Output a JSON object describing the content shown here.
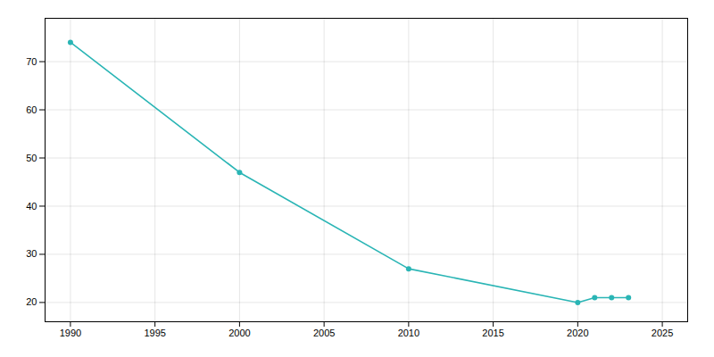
{
  "chart_data": {
    "type": "line",
    "x": [
      1990,
      2000,
      2010,
      2020,
      2021,
      2022,
      2023
    ],
    "values": [
      74,
      47,
      27,
      20,
      21,
      21,
      21
    ],
    "color": "#2ab5b5",
    "marker": "circle",
    "xlim": [
      1988.5,
      2026.5
    ],
    "ylim": [
      16,
      79
    ],
    "xticks": [
      1990,
      1995,
      2000,
      2005,
      2010,
      2015,
      2020,
      2025
    ],
    "yticks": [
      20,
      30,
      40,
      50,
      60,
      70
    ],
    "grid": true
  }
}
